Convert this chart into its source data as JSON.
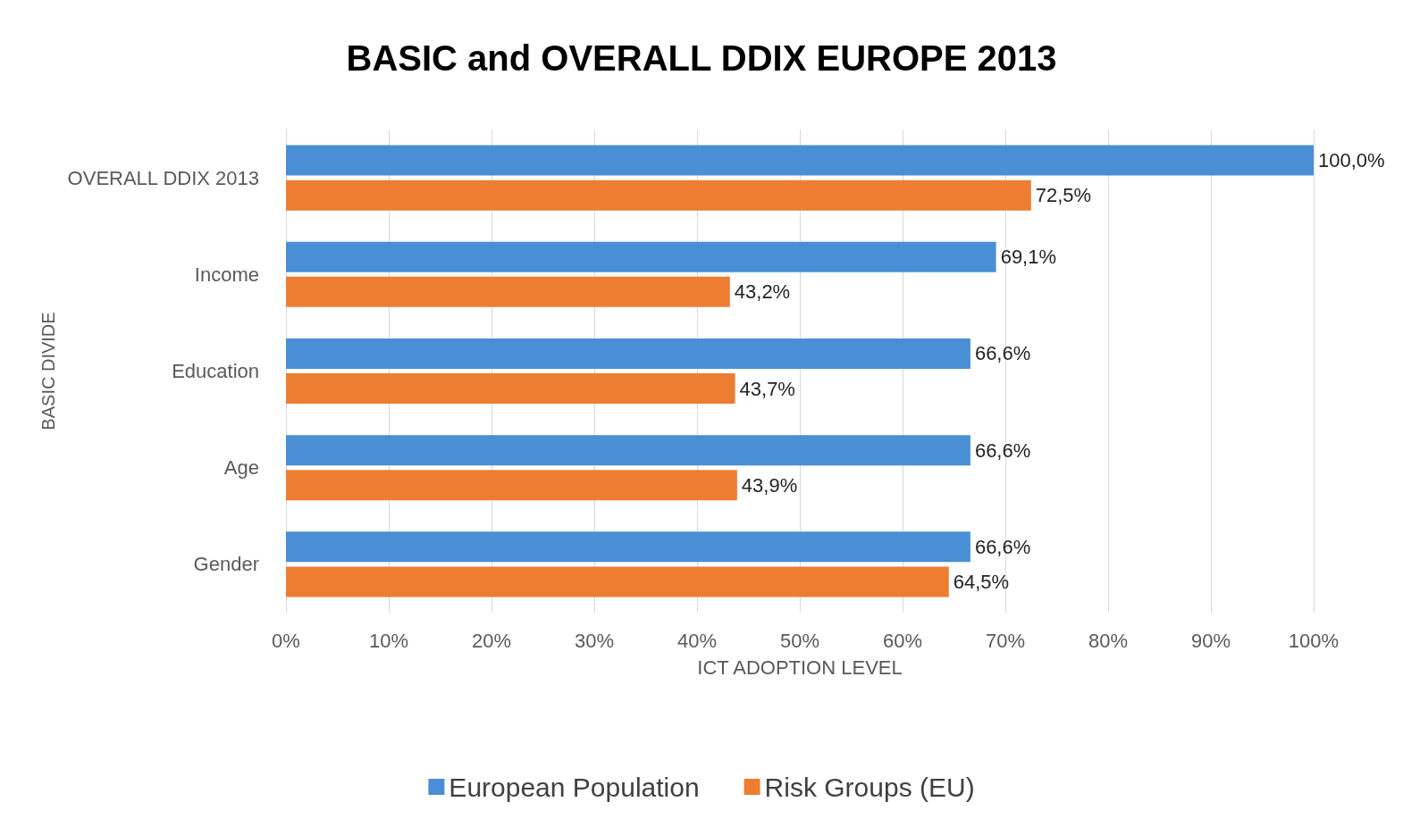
{
  "chart_data": {
    "type": "bar",
    "orientation": "horizontal",
    "title": "BASIC and OVERALL DDIX EUROPE 2013",
    "xlabel": "ICT ADOPTION LEVEL",
    "ylabel": "BASIC DIVIDE",
    "categories": [
      "OVERALL DDIX 2013",
      "Income",
      "Education",
      "Age",
      "Gender"
    ],
    "series": [
      {
        "name": "European Population",
        "color": "#4a8fd6",
        "values": [
          100,
          69.1,
          66.6,
          66.6,
          66.6
        ],
        "value_labels": [
          "100,0%",
          "69,1%",
          "66,6%",
          "66,6%",
          "66,6%"
        ]
      },
      {
        "name": "Risk Groups (EU)",
        "color": "#ed7d31",
        "values": [
          72.5,
          43.2,
          43.7,
          43.9,
          64.5
        ],
        "value_labels": [
          "72,5%",
          "43,2%",
          "43,7%",
          "43,9%",
          "64,5%"
        ]
      }
    ],
    "xlim": [
      0,
      100
    ],
    "xticks": [
      {
        "value": 0,
        "label": "0%"
      },
      {
        "value": 10,
        "label": "10%"
      },
      {
        "value": 20,
        "label": "20%"
      },
      {
        "value": 30,
        "label": "30%"
      },
      {
        "value": 40,
        "label": "40%"
      },
      {
        "value": 50,
        "label": "50%"
      },
      {
        "value": 60,
        "label": "60%"
      },
      {
        "value": 70,
        "label": "70%"
      },
      {
        "value": 80,
        "label": "80%"
      },
      {
        "value": 90,
        "label": "90%"
      },
      {
        "value": 100,
        "label": "100%"
      }
    ],
    "grid": "x",
    "legend": "bottom"
  }
}
